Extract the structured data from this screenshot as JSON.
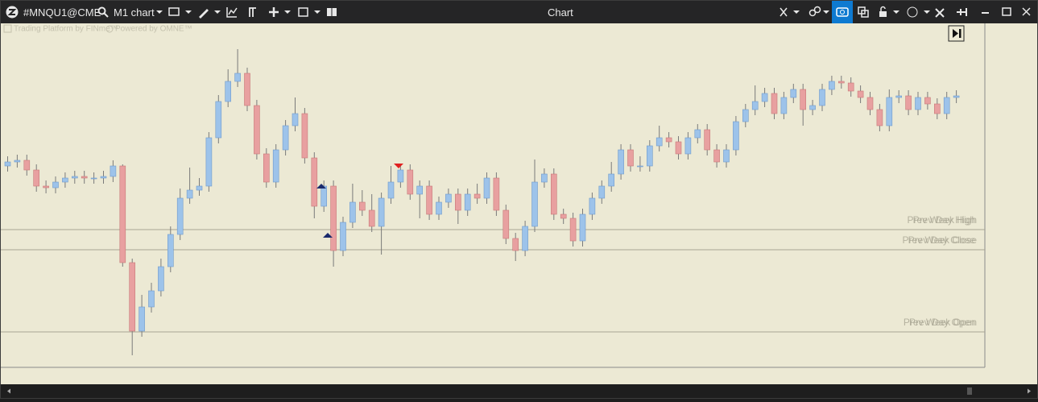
{
  "toolbar": {
    "symbol": "#MNQU1@CME",
    "timeframe": "M1 chart",
    "window_title": "Chart"
  },
  "watermark": {
    "platform": "Trading Platform by FINme™",
    "powered": "Powered by OMNE™"
  },
  "chart_data": {
    "type": "candlestick",
    "ylim": [
      0,
      427
    ],
    "up_color": "#9dc3ea",
    "down_color": "#e8a0a0",
    "wick_color": "#7a7a7a",
    "levels": [
      {
        "labels": [
          "Prev Week High",
          "Prev Day High"
        ],
        "value": 171
      },
      {
        "labels": [
          "Prev Week Close",
          "Prev Day Close"
        ],
        "value": 146
      },
      {
        "labels": [
          "Prev Week Open",
          "Prev Day Open"
        ],
        "value": 44
      }
    ],
    "candles": [
      [
        250,
        262,
        243,
        255
      ],
      [
        255,
        264,
        248,
        257
      ],
      [
        257,
        264,
        238,
        245
      ],
      [
        245,
        252,
        218,
        225
      ],
      [
        225,
        232,
        216,
        223
      ],
      [
        223,
        237,
        216,
        230
      ],
      [
        230,
        242,
        223,
        235
      ],
      [
        235,
        244,
        228,
        237
      ],
      [
        237,
        244,
        228,
        235
      ],
      [
        235,
        242,
        228,
        235
      ],
      [
        235,
        244,
        228,
        237
      ],
      [
        237,
        257,
        230,
        250
      ],
      [
        250,
        252,
        125,
        130
      ],
      [
        130,
        135,
        15,
        45
      ],
      [
        45,
        90,
        38,
        75
      ],
      [
        75,
        105,
        68,
        95
      ],
      [
        95,
        135,
        88,
        125
      ],
      [
        125,
        175,
        118,
        165
      ],
      [
        165,
        222,
        158,
        210
      ],
      [
        210,
        248,
        203,
        220
      ],
      [
        220,
        235,
        213,
        225
      ],
      [
        225,
        292,
        218,
        285
      ],
      [
        285,
        338,
        278,
        330
      ],
      [
        330,
        370,
        323,
        355
      ],
      [
        355,
        395,
        348,
        365
      ],
      [
        365,
        372,
        318,
        325
      ],
      [
        325,
        332,
        258,
        265
      ],
      [
        265,
        272,
        223,
        230
      ],
      [
        230,
        277,
        223,
        270
      ],
      [
        270,
        307,
        263,
        300
      ],
      [
        300,
        335,
        293,
        315
      ],
      [
        315,
        322,
        253,
        260
      ],
      [
        260,
        267,
        185,
        200
      ],
      [
        200,
        232,
        193,
        225
      ],
      [
        225,
        232,
        125,
        145
      ],
      [
        145,
        187,
        138,
        180
      ],
      [
        180,
        228,
        173,
        205
      ],
      [
        205,
        220,
        188,
        195
      ],
      [
        195,
        215,
        168,
        175
      ],
      [
        175,
        217,
        140,
        210
      ],
      [
        210,
        250,
        203,
        230
      ],
      [
        230,
        252,
        223,
        245
      ],
      [
        245,
        252,
        208,
        215
      ],
      [
        215,
        232,
        185,
        225
      ],
      [
        225,
        232,
        183,
        190
      ],
      [
        190,
        212,
        183,
        205
      ],
      [
        205,
        222,
        198,
        215
      ],
      [
        215,
        222,
        178,
        195
      ],
      [
        195,
        222,
        188,
        215
      ],
      [
        215,
        228,
        203,
        210
      ],
      [
        210,
        242,
        203,
        235
      ],
      [
        235,
        242,
        188,
        195
      ],
      [
        195,
        202,
        153,
        160
      ],
      [
        160,
        167,
        132,
        145
      ],
      [
        145,
        182,
        138,
        175
      ],
      [
        175,
        258,
        168,
        230
      ],
      [
        230,
        247,
        223,
        240
      ],
      [
        240,
        247,
        183,
        190
      ],
      [
        190,
        197,
        178,
        185
      ],
      [
        185,
        192,
        150,
        157
      ],
      [
        157,
        197,
        150,
        190
      ],
      [
        190,
        217,
        183,
        210
      ],
      [
        210,
        232,
        203,
        225
      ],
      [
        225,
        255,
        218,
        240
      ],
      [
        240,
        277,
        233,
        270
      ],
      [
        270,
        277,
        243,
        250
      ],
      [
        250,
        262,
        243,
        250
      ],
      [
        250,
        282,
        243,
        275
      ],
      [
        275,
        300,
        268,
        285
      ],
      [
        285,
        292,
        273,
        280
      ],
      [
        280,
        287,
        258,
        265
      ],
      [
        265,
        292,
        258,
        285
      ],
      [
        285,
        302,
        278,
        295
      ],
      [
        295,
        302,
        263,
        270
      ],
      [
        270,
        277,
        248,
        255
      ],
      [
        255,
        277,
        248,
        270
      ],
      [
        270,
        312,
        263,
        305
      ],
      [
        305,
        327,
        298,
        320
      ],
      [
        320,
        350,
        313,
        330
      ],
      [
        330,
        347,
        323,
        340
      ],
      [
        340,
        347,
        308,
        315
      ],
      [
        315,
        342,
        308,
        335
      ],
      [
        335,
        352,
        328,
        345
      ],
      [
        345,
        352,
        300,
        320
      ],
      [
        320,
        332,
        313,
        325
      ],
      [
        325,
        352,
        318,
        345
      ],
      [
        345,
        362,
        338,
        355
      ],
      [
        355,
        362,
        346,
        353
      ],
      [
        353,
        360,
        336,
        343
      ],
      [
        343,
        350,
        328,
        335
      ],
      [
        335,
        342,
        313,
        320
      ],
      [
        320,
        327,
        293,
        300
      ],
      [
        300,
        345,
        293,
        335
      ],
      [
        335,
        344,
        328,
        337
      ],
      [
        337,
        344,
        313,
        320
      ],
      [
        320,
        342,
        313,
        335
      ],
      [
        335,
        342,
        320,
        327
      ],
      [
        327,
        334,
        308,
        315
      ],
      [
        315,
        342,
        308,
        335
      ],
      [
        335,
        344,
        328,
        337
      ]
    ]
  }
}
